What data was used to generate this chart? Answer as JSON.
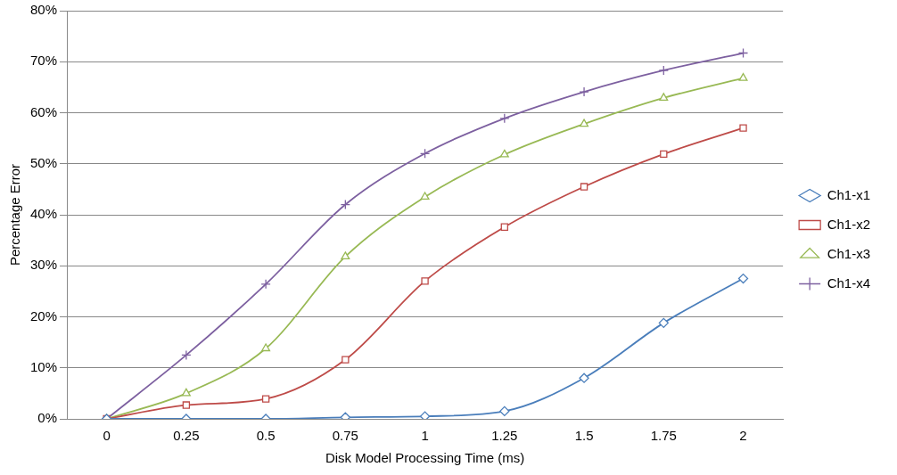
{
  "chart_data": {
    "type": "line",
    "xlabel": "Disk Model Processing Time (ms)",
    "ylabel": "Percentage Error",
    "categories": [
      "0",
      "0.25",
      "0.5",
      "0.75",
      "1",
      "1.25",
      "1.5",
      "1.75",
      "2"
    ],
    "series": [
      {
        "name": "Ch1-x1",
        "color": "#4a7ebb",
        "marker": "diamond",
        "values": [
          0,
          0,
          0,
          0.3,
          0.5,
          1.5,
          8,
          18.8,
          27.5
        ]
      },
      {
        "name": "Ch1-x2",
        "color": "#be4b48",
        "marker": "square",
        "values": [
          0,
          2.7,
          3.9,
          11.6,
          27,
          37.6,
          45.5,
          51.9,
          57
        ]
      },
      {
        "name": "Ch1-x3",
        "color": "#98b954",
        "marker": "triangle",
        "values": [
          0,
          5,
          13.8,
          31.8,
          43.5,
          51.8,
          57.8,
          62.9,
          66.8
        ]
      },
      {
        "name": "Ch1-x4",
        "color": "#7d60a0",
        "marker": "cross",
        "values": [
          0,
          12.5,
          26.4,
          42,
          52,
          58.9,
          64.1,
          68.3,
          71.7
        ]
      }
    ],
    "ylim": [
      0,
      80
    ],
    "yticks": [
      {
        "value": 0,
        "label": "0%"
      },
      {
        "value": 10,
        "label": "10%"
      },
      {
        "value": 20,
        "label": "20%"
      },
      {
        "value": 30,
        "label": "30%"
      },
      {
        "value": 40,
        "label": "40%"
      },
      {
        "value": 50,
        "label": "50%"
      },
      {
        "value": 60,
        "label": "60%"
      },
      {
        "value": 70,
        "label": "70%"
      },
      {
        "value": 80,
        "label": "80%"
      }
    ],
    "grid": "y",
    "legend": "right",
    "line_style": "solid"
  }
}
